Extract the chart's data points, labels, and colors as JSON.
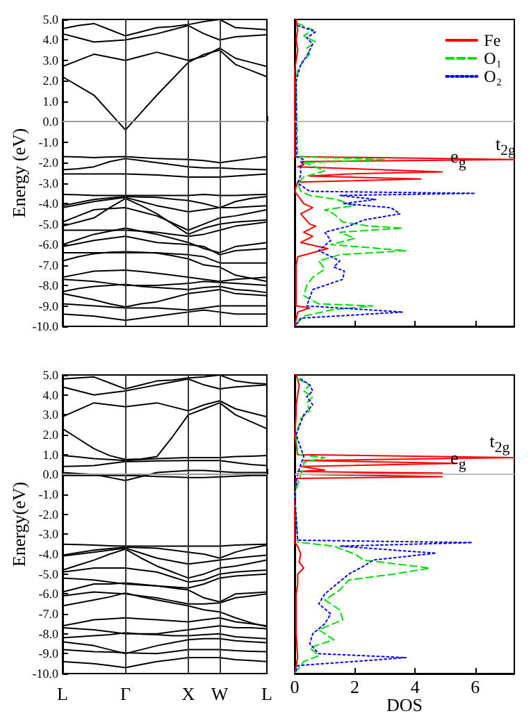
{
  "chart_data": [
    {
      "type": "line",
      "ylabel": "Energy (eV)",
      "marker": "none",
      "tick_labels": "y",
      "categories": [
        "L",
        null,
        null,
        null,
        "Γ",
        null,
        null,
        null,
        "X",
        null,
        "W",
        null,
        null,
        "L"
      ],
      "ylim": [
        -10,
        5
      ],
      "yticks": [
        {
          "value": -10,
          "label": "-10.0"
        },
        {
          "value": -9,
          "label": "-9.0"
        },
        {
          "value": -8,
          "label": "-8.0"
        },
        {
          "value": -7,
          "label": "-7.0"
        },
        {
          "value": -6,
          "label": "-6.0"
        },
        {
          "value": -5,
          "label": "-5.0"
        },
        {
          "value": -4,
          "label": "-4.0"
        },
        {
          "value": -3,
          "label": "-3.0"
        },
        {
          "value": -2,
          "label": "-2.0"
        },
        {
          "value": -1,
          "label": "-1.0"
        },
        {
          "value": 0,
          "label": "0.0"
        },
        {
          "value": 1,
          "label": "1.0"
        },
        {
          "value": 2,
          "label": "2.0"
        },
        {
          "value": 3,
          "label": "3.0"
        },
        {
          "value": 4,
          "label": "4.0"
        },
        {
          "value": 5,
          "label": "5.0"
        }
      ],
      "ref_lines": [
        {
          "axis": "x",
          "value": "Γ",
          "color": "#333333"
        },
        {
          "axis": "x",
          "value": "X",
          "color": "#333333"
        },
        {
          "axis": "x",
          "value": "W",
          "color": "#333333"
        },
        {
          "axis": "y",
          "value": 0,
          "color": "#999999"
        }
      ],
      "series": [
        {
          "color": "#000000",
          "values": [
            2.2,
            1.75,
            1.3,
            0.45,
            -0.4,
            0.45,
            1.3,
            2.1,
            2.9,
            3.3,
            3.5,
            2.8,
            2.5,
            2.2
          ]
        },
        {
          "color": "#000000",
          "values": [
            2.7,
            3.0,
            3.3,
            3.15,
            3.0,
            3.2,
            3.4,
            3.2,
            3.0,
            3.2,
            3.6,
            3.1,
            2.9,
            2.7
          ]
        },
        {
          "color": "#000000",
          "values": [
            4.3,
            4.1,
            3.9,
            3.95,
            4.0,
            4.15,
            4.3,
            4.5,
            4.7,
            4.3,
            4.0,
            4.15,
            4.2,
            4.25
          ]
        },
        {
          "color": "#000000",
          "values": [
            4.55,
            4.7,
            4.8,
            4.5,
            4.2,
            4.4,
            4.6,
            4.65,
            4.75,
            4.9,
            5.0,
            4.6,
            4.55,
            4.5
          ]
        },
        {
          "color": "#000000",
          "values": [
            -1.7,
            -1.72,
            -1.75,
            -1.72,
            -1.7,
            -1.75,
            -1.8,
            -1.82,
            -1.85,
            -1.9,
            -2.0,
            -1.9,
            -1.8,
            -1.7
          ]
        },
        {
          "color": "#000000",
          "values": [
            -2.35,
            -2.3,
            -2.2,
            -1.95,
            -1.8,
            -1.9,
            -2.0,
            -2.1,
            -2.2,
            -2.25,
            -2.25,
            -2.3,
            -2.32,
            -2.35
          ]
        },
        {
          "color": "#000000",
          "values": [
            -2.55,
            -2.55,
            -2.55,
            -2.55,
            -2.55,
            -2.58,
            -2.6,
            -2.65,
            -2.7,
            -2.7,
            -2.7,
            -2.65,
            -2.6,
            -2.55
          ]
        },
        {
          "color": "#000000",
          "values": [
            -3.55,
            -3.57,
            -3.6,
            -3.6,
            -3.6,
            -3.6,
            -3.6,
            -3.6,
            -3.6,
            -3.55,
            -3.6,
            -3.6,
            -3.57,
            -3.55
          ]
        },
        {
          "color": "#000000",
          "values": [
            -4.1,
            -3.95,
            -3.8,
            -3.72,
            -3.65,
            -3.68,
            -3.7,
            -3.78,
            -3.85,
            -4.0,
            -4.2,
            -3.9,
            -3.75,
            -3.65
          ]
        },
        {
          "color": "#000000",
          "values": [
            -4.2,
            -4.05,
            -3.9,
            -3.8,
            -3.7,
            -3.9,
            -4.1,
            -4.25,
            -4.4,
            -4.3,
            -4.2,
            -4.2,
            -4.15,
            -4.1
          ]
        },
        {
          "color": "#000000",
          "values": [
            -4.9,
            -4.6,
            -4.3,
            -4.25,
            -4.2,
            -4.4,
            -4.6,
            -4.95,
            -5.3,
            -5.0,
            -4.7,
            -4.6,
            -4.45,
            -4.3
          ]
        },
        {
          "color": "#000000",
          "values": [
            -5.1,
            -4.9,
            -4.7,
            -4.2,
            -3.75,
            -4.1,
            -4.5,
            -5.0,
            -5.5,
            -5.2,
            -5.0,
            -4.9,
            -4.85,
            -4.8
          ]
        },
        {
          "color": "#000000",
          "values": [
            -5.3,
            -5.3,
            -5.3,
            -5.3,
            -5.3,
            -5.35,
            -5.4,
            -5.5,
            -5.6,
            -5.5,
            -5.3,
            -5.1,
            -5.0,
            -4.9
          ]
        },
        {
          "color": "#000000",
          "values": [
            -6.0,
            -5.75,
            -5.5,
            -5.35,
            -5.2,
            -5.35,
            -5.5,
            -5.7,
            -5.9,
            -6.2,
            -6.4,
            -6.1,
            -6.0,
            -5.9
          ]
        },
        {
          "color": "#000000",
          "values": [
            -6.1,
            -5.95,
            -5.8,
            -5.7,
            -5.6,
            -5.75,
            -5.9,
            -5.95,
            -6.0,
            -6.1,
            -6.5,
            -6.3,
            -6.25,
            -6.2
          ]
        },
        {
          "color": "#000000",
          "values": [
            -6.4,
            -6.4,
            -6.4,
            -6.4,
            -6.4,
            -6.4,
            -6.4,
            -6.45,
            -6.5,
            -6.6,
            -6.9,
            -6.9,
            -6.9,
            -6.9
          ]
        },
        {
          "color": "#000000",
          "values": [
            -6.8,
            -6.6,
            -6.45,
            -6.38,
            -6.35,
            -6.38,
            -6.42,
            -6.55,
            -6.7,
            -7.0,
            -7.1,
            -7.5,
            -7.65,
            -7.8
          ]
        },
        {
          "color": "#000000",
          "values": [
            -7.6,
            -7.45,
            -7.3,
            -7.28,
            -7.25,
            -7.32,
            -7.4,
            -7.5,
            -7.6,
            -7.7,
            -7.8,
            -7.7,
            -7.65,
            -7.6
          ]
        },
        {
          "color": "#000000",
          "values": [
            -7.7,
            -7.75,
            -7.8,
            -7.9,
            -8.0,
            -8.0,
            -8.0,
            -7.95,
            -7.9,
            -7.8,
            -7.85,
            -7.9,
            -7.95,
            -8.0
          ]
        },
        {
          "color": "#000000",
          "values": [
            -8.3,
            -8.15,
            -8.05,
            -8.0,
            -7.95,
            -8.05,
            -8.1,
            -8.15,
            -8.2,
            -8.1,
            -8.05,
            -8.2,
            -8.25,
            -8.35
          ]
        },
        {
          "color": "#000000",
          "values": [
            -8.4,
            -8.55,
            -8.7,
            -8.9,
            -9.05,
            -8.9,
            -8.8,
            -8.6,
            -8.4,
            -8.3,
            -8.2,
            -8.4,
            -8.45,
            -8.5
          ]
        },
        {
          "color": "#000000",
          "values": [
            -8.9,
            -8.95,
            -9.0,
            -9.05,
            -9.1,
            -9.1,
            -9.1,
            -9.15,
            -9.2,
            -9.1,
            -9.0,
            -9.0,
            -9.0,
            -9.0
          ]
        },
        {
          "color": "#000000",
          "values": [
            -9.4,
            -9.45,
            -9.5,
            -9.6,
            -9.7,
            -9.6,
            -9.5,
            -9.4,
            -9.3,
            -9.2,
            -9.3,
            -9.4,
            -9.4,
            -9.4
          ]
        }
      ]
    },
    {
      "type": "line",
      "orientation": "horizontal",
      "marker": "none",
      "tick_labels": false,
      "legend": "top right",
      "xlim": [
        0,
        7.3
      ],
      "xticks": [
        0,
        2,
        4,
        6
      ],
      "ylim": [
        -10,
        5
      ],
      "ref_lines": [
        {
          "axis": "y",
          "value": 0,
          "color": "#bbbbbb"
        }
      ],
      "annotations": [
        {
          "text": "t$_{2g}$",
          "x": 6.4,
          "y": -1.85
        },
        {
          "text": "e$_{g}$",
          "x": 4.9,
          "y": -2.45
        }
      ],
      "series": [
        {
          "name": "Fe",
          "color": "#ff0000",
          "line_style": "solid",
          "x": [
            5,
            4.5,
            4,
            3.5,
            3,
            2.5,
            -1.7,
            -1.85,
            -1.95,
            -2.1,
            -2.2,
            -2.45,
            -2.55,
            -2.65,
            -2.8,
            -2.95,
            -3.4,
            -3.6,
            -4.0,
            -4.2,
            -4.5,
            -5.0,
            -5.1,
            -5.4,
            -5.6,
            -5.9,
            -6.2,
            -6.6,
            -7.0,
            -9.0,
            -9.1,
            -9.3,
            -10
          ],
          "values": [
            0.05,
            0.1,
            0.05,
            0.1,
            0.05,
            0,
            0,
            7.3,
            0.2,
            0.3,
            0.1,
            4.9,
            1.8,
            0.5,
            4.2,
            0.1,
            0,
            0.1,
            0.3,
            0.6,
            0.2,
            0.5,
            0.7,
            0.3,
            0.6,
            0.2,
            1.1,
            0.1,
            0.05,
            0.05,
            0.5,
            0.1,
            0
          ]
        },
        {
          "name": "O₁",
          "color": "#00dd00",
          "line_style": "dashed",
          "x": [
            4.8,
            4.5,
            4.2,
            3.9,
            3.6,
            3.3,
            3.0,
            2.5,
            2.0,
            -1.7,
            -1.85,
            -2.0,
            -2.1,
            -2.4,
            -2.7,
            -3.0,
            -3.4,
            -3.6,
            -3.8,
            -4.1,
            -4.3,
            -4.5,
            -4.9,
            -5.1,
            -5.2,
            -5.4,
            -5.7,
            -6.0,
            -6.3,
            -6.5,
            -6.8,
            -7.2,
            -7.6,
            -8.0,
            -8.5,
            -8.9,
            -9.0,
            -9.2,
            -9.5,
            -10
          ],
          "values": [
            0.1,
            0.6,
            0.3,
            0.7,
            0.4,
            0.5,
            0.3,
            0.1,
            0.05,
            0.1,
            3.0,
            0.3,
            0.5,
            1.0,
            0.3,
            0.1,
            0.2,
            0.5,
            1.4,
            2.0,
            1.0,
            1.3,
            1.6,
            2.5,
            3.6,
            1.5,
            2.0,
            1.2,
            3.7,
            1.5,
            0.8,
            1.0,
            0.6,
            0.4,
            0.3,
            0.8,
            2.6,
            1.2,
            0.3,
            0
          ]
        },
        {
          "name": "O₂",
          "color": "#0000ff",
          "line_style": "dotted",
          "x": [
            4.7,
            4.4,
            4.1,
            3.8,
            3.5,
            3.2,
            2.8,
            2.0,
            -1.7,
            -1.85,
            -2.2,
            -2.6,
            -3.0,
            -3.4,
            -3.5,
            -3.6,
            -3.8,
            -4.0,
            -4.2,
            -4.5,
            -4.8,
            -5.1,
            -5.4,
            -5.8,
            -6.3,
            -6.8,
            -7.1,
            -7.3,
            -7.7,
            -8.2,
            -8.6,
            -9.0,
            -9.3,
            -9.6,
            -10
          ],
          "values": [
            0.1,
            0.7,
            0.4,
            0.6,
            0.5,
            0.4,
            0.2,
            0.05,
            0.05,
            0.3,
            0.2,
            0.2,
            0.1,
            0.5,
            6.0,
            1.5,
            2.7,
            1.6,
            3.2,
            3.5,
            2.3,
            1.8,
            1.0,
            1.2,
            0.8,
            1.5,
            1.3,
            1.65,
            1.6,
            0.6,
            0.5,
            0.4,
            3.6,
            0.2,
            0
          ]
        }
      ]
    },
    {
      "type": "line",
      "ylabel": "Energy(eV)",
      "marker": "none",
      "categories": [
        "L",
        null,
        null,
        null,
        "Γ",
        null,
        null,
        null,
        "X",
        null,
        "W",
        null,
        null,
        "L"
      ],
      "ylim": [
        -10,
        5
      ],
      "yticks": [
        {
          "value": -10,
          "label": "-10.0"
        },
        {
          "value": -9,
          "label": "-9.0"
        },
        {
          "value": -8,
          "label": "-8.0"
        },
        {
          "value": -7,
          "label": "-7.0"
        },
        {
          "value": -6,
          "label": "-6.0"
        },
        {
          "value": -5,
          "label": "-5.0"
        },
        {
          "value": -4,
          "label": "-4.0"
        },
        {
          "value": -3,
          "label": "-3.0"
        },
        {
          "value": -2,
          "label": "-2.0"
        },
        {
          "value": -1,
          "label": "-1.0"
        },
        {
          "value": 0,
          "label": "0.0"
        },
        {
          "value": 1,
          "label": "1.0"
        },
        {
          "value": 2,
          "label": "2.0"
        },
        {
          "value": 3,
          "label": "3.0"
        },
        {
          "value": 4,
          "label": "4.0"
        },
        {
          "value": 5,
          "label": "5.0"
        }
      ],
      "ref_lines": [
        {
          "axis": "x",
          "value": "Γ",
          "color": "#333333"
        },
        {
          "axis": "x",
          "value": "X",
          "color": "#333333"
        },
        {
          "axis": "x",
          "value": "W",
          "color": "#333333"
        },
        {
          "axis": "y",
          "value": 0,
          "color": "#999999"
        }
      ],
      "series": [
        {
          "color": "#000000",
          "values": [
            2.3,
            1.8,
            1.3,
            0.95,
            0.75,
            0.78,
            0.9,
            1.9,
            3.0,
            3.3,
            3.6,
            3.0,
            2.65,
            2.3
          ]
        },
        {
          "color": "#000000",
          "values": [
            2.9,
            3.25,
            3.6,
            3.5,
            3.4,
            3.5,
            3.6,
            3.4,
            3.2,
            3.5,
            3.7,
            3.3,
            3.1,
            2.9
          ]
        },
        {
          "color": "#000000",
          "values": [
            4.4,
            4.2,
            4.0,
            4.1,
            4.2,
            4.35,
            4.5,
            4.65,
            4.8,
            4.5,
            4.3,
            4.4,
            4.45,
            4.5
          ]
        },
        {
          "color": "#000000",
          "values": [
            4.8,
            4.85,
            4.9,
            4.6,
            4.3,
            4.5,
            4.7,
            4.75,
            4.85,
            4.9,
            5.0,
            4.7,
            4.6,
            4.55
          ]
        },
        {
          "color": "#000000",
          "values": [
            0.95,
            0.88,
            0.8,
            0.75,
            0.7,
            0.75,
            0.8,
            0.82,
            0.85,
            0.85,
            0.85,
            0.9,
            0.92,
            0.95
          ]
        },
        {
          "color": "#000000",
          "values": [
            0.4,
            0.42,
            0.45,
            0.55,
            0.65,
            0.66,
            0.68,
            0.69,
            0.7,
            0.7,
            0.7,
            0.6,
            0.5,
            0.45
          ]
        },
        {
          "color": "#000000",
          "values": [
            0.1,
            0.05,
            0.0,
            -0.15,
            -0.3,
            -0.1,
            0.1,
            0.15,
            0.2,
            0.2,
            0.15,
            0.1,
            0.1,
            0.1
          ]
        },
        {
          "color": "#000000",
          "values": [
            -0.05,
            -0.05,
            -0.05,
            -0.05,
            -0.05,
            -0.07,
            -0.1,
            -0.12,
            -0.15,
            -0.15,
            -0.12,
            -0.08,
            -0.05,
            -0.05
          ]
        },
        {
          "color": "#000000",
          "values": [
            -3.5,
            -3.52,
            -3.55,
            -3.58,
            -3.6,
            -3.6,
            -3.6,
            -3.6,
            -3.6,
            -3.6,
            -3.6,
            -3.55,
            -3.52,
            -3.5
          ]
        },
        {
          "color": "#000000",
          "values": [
            -4.05,
            -3.92,
            -3.8,
            -3.72,
            -3.65,
            -3.68,
            -3.7,
            -3.8,
            -3.9,
            -4.0,
            -4.2,
            -3.9,
            -3.7,
            -3.55
          ]
        },
        {
          "color": "#000000",
          "values": [
            -4.1,
            -4.0,
            -3.9,
            -3.8,
            -3.7,
            -3.95,
            -4.2,
            -4.35,
            -4.5,
            -4.4,
            -4.3,
            -4.2,
            -4.12,
            -4.05
          ]
        },
        {
          "color": "#000000",
          "values": [
            -4.8,
            -4.55,
            -4.3,
            -4.0,
            -3.75,
            -4.2,
            -4.6,
            -4.9,
            -5.2,
            -5.0,
            -4.7,
            -4.6,
            -4.45,
            -4.3
          ]
        },
        {
          "color": "#000000",
          "values": [
            -4.9,
            -4.8,
            -4.7,
            -4.7,
            -4.7,
            -4.8,
            -4.9,
            -5.15,
            -5.4,
            -5.3,
            -5.0,
            -4.9,
            -4.85,
            -4.8
          ]
        },
        {
          "color": "#000000",
          "values": [
            -5.2,
            -5.25,
            -5.3,
            -5.4,
            -5.5,
            -5.55,
            -5.6,
            -5.65,
            -5.7,
            -5.5,
            -5.2,
            -5.1,
            -5.05,
            -5.0
          ]
        },
        {
          "color": "#000000",
          "values": [
            -5.9,
            -5.7,
            -5.5,
            -5.5,
            -5.45,
            -5.52,
            -5.6,
            -5.7,
            -5.8,
            -6.2,
            -6.4,
            -6.0,
            -5.95,
            -5.9
          ]
        },
        {
          "color": "#000000",
          "values": [
            -6.1,
            -6.0,
            -5.9,
            -5.95,
            -6.0,
            -6.1,
            -6.2,
            -6.35,
            -6.5,
            -6.5,
            -6.45,
            -6.2,
            -6.1,
            -6.0
          ]
        },
        {
          "color": "#000000",
          "values": [
            -6.6,
            -6.45,
            -6.3,
            -6.15,
            -5.95,
            -6.15,
            -6.3,
            -6.45,
            -6.6,
            -6.8,
            -6.9,
            -7.2,
            -7.45,
            -7.65
          ]
        },
        {
          "color": "#000000",
          "values": [
            -7.6,
            -7.45,
            -7.3,
            -7.25,
            -7.2,
            -7.25,
            -7.3,
            -7.35,
            -7.4,
            -7.3,
            -7.2,
            -7.4,
            -7.5,
            -7.6
          ]
        },
        {
          "color": "#000000",
          "values": [
            -7.7,
            -7.75,
            -7.8,
            -7.9,
            -8.0,
            -8.0,
            -8.0,
            -7.9,
            -7.8,
            -7.7,
            -7.6,
            -7.7,
            -7.7,
            -7.75
          ]
        },
        {
          "color": "#000000",
          "values": [
            -8.2,
            -8.15,
            -8.1,
            -8.05,
            -7.95,
            -8.02,
            -8.05,
            -8.1,
            -8.1,
            -8.05,
            -8.0,
            -8.15,
            -8.2,
            -8.25
          ]
        },
        {
          "color": "#000000",
          "values": [
            -8.4,
            -8.5,
            -8.6,
            -8.8,
            -9.0,
            -8.8,
            -8.6,
            -8.45,
            -8.3,
            -8.25,
            -8.25,
            -8.35,
            -8.4,
            -8.45
          ]
        },
        {
          "color": "#000000",
          "values": [
            -8.8,
            -8.85,
            -8.9,
            -8.92,
            -8.95,
            -8.98,
            -9.0,
            -8.9,
            -8.8,
            -8.8,
            -8.8,
            -8.85,
            -8.88,
            -8.9
          ]
        },
        {
          "color": "#000000",
          "values": [
            -9.4,
            -9.45,
            -9.5,
            -9.6,
            -9.7,
            -9.55,
            -9.4,
            -9.3,
            -9.2,
            -9.2,
            -9.2,
            -9.3,
            -9.35,
            -9.4
          ]
        }
      ]
    },
    {
      "type": "line",
      "orientation": "horizontal",
      "xlabel": "DOS",
      "marker": "none",
      "tick_labels": "x",
      "xlim": [
        0,
        7.3
      ],
      "xticks": [
        0,
        2,
        4,
        6
      ],
      "ylim": [
        -10,
        5
      ],
      "ref_lines": [
        {
          "axis": "y",
          "value": 0,
          "color": "#bbbbbb"
        }
      ],
      "annotations": [
        {
          "text": "t$_{2g}$",
          "x": 6.2,
          "y": 0.85
        },
        {
          "text": "e$_{g}$",
          "x": 4.9,
          "y": 0.07
        }
      ],
      "series": [
        {
          "color": "#ff0000",
          "line_style": "solid",
          "x": [
            5,
            4.5,
            4,
            3.5,
            3,
            2,
            1.0,
            0.85,
            0.7,
            0.56,
            0.4,
            0.22,
            0.15,
            0.07,
            0,
            -0.11,
            -0.2,
            -1,
            -3.4,
            -3.6,
            -4.0,
            -4.4,
            -4.7,
            -5.0,
            -5.5,
            -6.0,
            -7,
            -8,
            -9.2,
            -10
          ],
          "values": [
            0.05,
            0.15,
            0.1,
            0.05,
            0.05,
            0,
            0.1,
            7.3,
            0.3,
            5.4,
            0.2,
            1.0,
            0.1,
            4.9,
            0.5,
            4.9,
            0.05,
            0,
            0,
            0.1,
            0.2,
            0.15,
            0.3,
            0.1,
            0.1,
            0.05,
            0.05,
            0.05,
            0.1,
            0
          ]
        },
        {
          "color": "#00dd00",
          "line_style": "dashed",
          "x": [
            4.8,
            4.5,
            4.2,
            3.9,
            3.6,
            3.2,
            2.8,
            2.0,
            1.0,
            0.85,
            0.6,
            0.3,
            0.0,
            -1.0,
            -3.4,
            -3.6,
            -4.0,
            -4.3,
            -4.7,
            -5.0,
            -5.3,
            -5.8,
            -6.3,
            -6.8,
            -7.3,
            -7.8,
            -8.3,
            -8.7,
            -9.1,
            -9.4,
            -10
          ],
          "values": [
            0.1,
            0.5,
            0.3,
            0.6,
            0.4,
            0.5,
            0.2,
            0.05,
            0.1,
            1.0,
            0.3,
            0.3,
            0.2,
            0,
            0.1,
            1.3,
            2.0,
            2.3,
            4.5,
            3.3,
            1.8,
            1.5,
            1.0,
            1.5,
            1.6,
            0.8,
            1.3,
            0.5,
            0.8,
            0.3,
            0
          ]
        },
        {
          "color": "#0000ff",
          "line_style": "dotted",
          "x": [
            4.8,
            4.5,
            4.2,
            3.9,
            3.5,
            3.0,
            2.0,
            0.9,
            0.5,
            0.0,
            -1.0,
            -3.3,
            -3.42,
            -3.6,
            -3.95,
            -4.3,
            -4.6,
            -5.0,
            -5.5,
            -6.0,
            -6.5,
            -7.0,
            -7.5,
            -8.0,
            -8.5,
            -9.0,
            -9.2,
            -9.6,
            -10
          ],
          "values": [
            0.2,
            0.5,
            0.6,
            0.4,
            0.6,
            0.3,
            0.05,
            0.3,
            0.2,
            0.1,
            0,
            0.1,
            5.9,
            1.5,
            4.7,
            2.6,
            2.3,
            1.8,
            1.4,
            1.0,
            0.8,
            1.2,
            1.0,
            0.6,
            0.5,
            0.8,
            3.7,
            0.1,
            0
          ]
        }
      ]
    }
  ]
}
